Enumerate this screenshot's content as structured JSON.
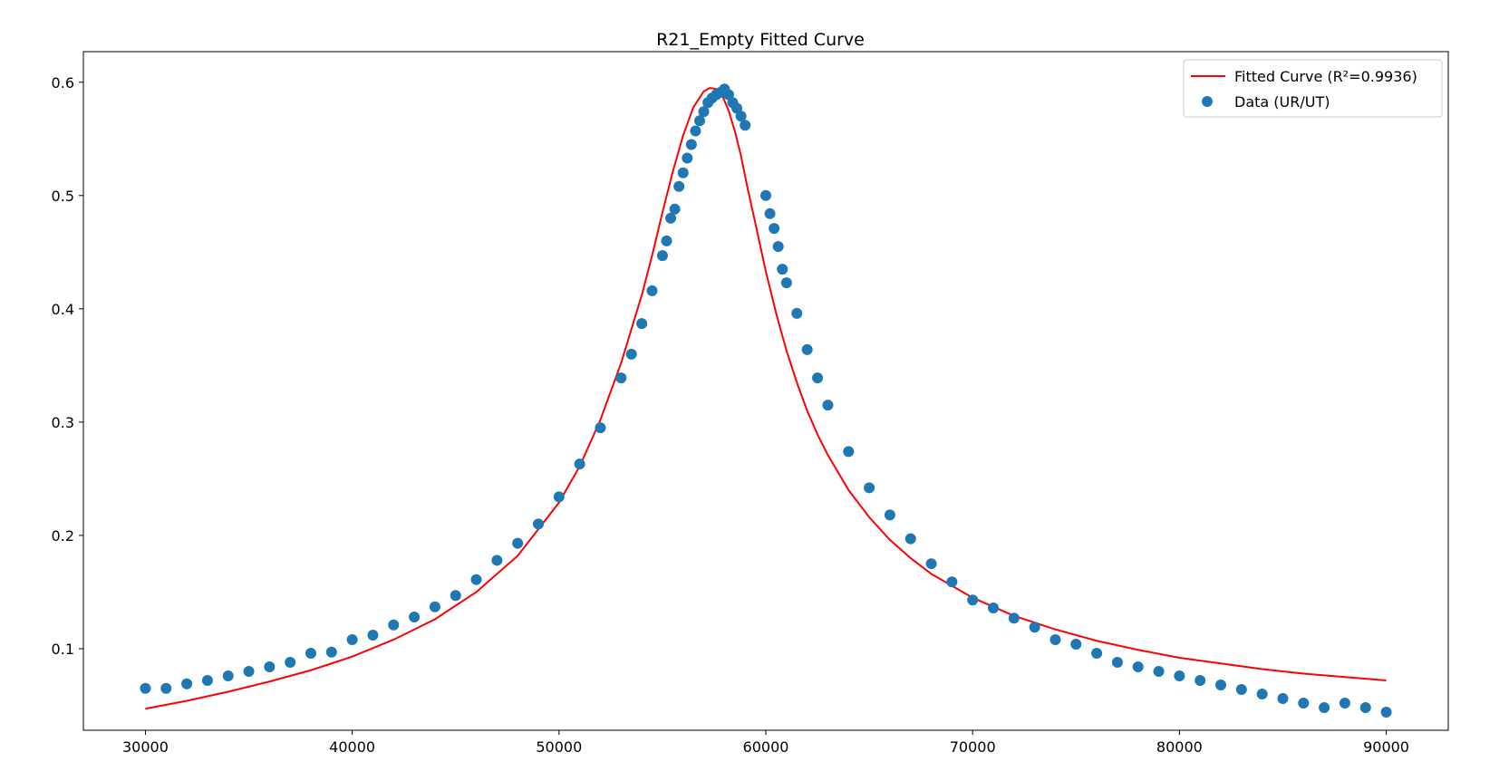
{
  "chart_data": {
    "type": "scatter",
    "title": "R21_Empty Fitted Curve",
    "xlabel": "",
    "ylabel": "",
    "xlim": [
      27000,
      93000
    ],
    "ylim": [
      0.028,
      0.627
    ],
    "x_ticks": [
      30000,
      40000,
      50000,
      60000,
      70000,
      80000,
      90000
    ],
    "x_tick_labels": [
      "30000",
      "40000",
      "50000",
      "60000",
      "70000",
      "80000",
      "90000"
    ],
    "y_ticks": [
      0.1,
      0.2,
      0.3,
      0.4,
      0.5,
      0.6
    ],
    "y_tick_labels": [
      "0.1",
      "0.2",
      "0.3",
      "0.4",
      "0.5",
      "0.6"
    ],
    "grid": false,
    "legend_position": "top-right",
    "colors": {
      "fit": "#ff0000",
      "data": "#1f77b4"
    },
    "series": [
      {
        "name": "Fitted Curve (R²=0.9936)",
        "kind": "line",
        "x": [
          30000,
          32000,
          34000,
          36000,
          38000,
          40000,
          42000,
          44000,
          46000,
          48000,
          50000,
          51000,
          52000,
          53000,
          54000,
          54500,
          55000,
          55500,
          56000,
          56500,
          57000,
          57300,
          57600,
          57900,
          58200,
          58500,
          58800,
          59100,
          59500,
          60000,
          60500,
          61000,
          61500,
          62000,
          62500,
          63000,
          64000,
          65000,
          66000,
          67000,
          68000,
          70000,
          72000,
          74000,
          76000,
          78000,
          80000,
          82000,
          84000,
          86000,
          88000,
          90000
        ],
        "y": [
          0.047,
          0.054,
          0.062,
          0.071,
          0.081,
          0.093,
          0.108,
          0.126,
          0.15,
          0.182,
          0.229,
          0.261,
          0.302,
          0.352,
          0.412,
          0.447,
          0.485,
          0.521,
          0.553,
          0.578,
          0.592,
          0.595,
          0.594,
          0.588,
          0.575,
          0.557,
          0.535,
          0.508,
          0.475,
          0.433,
          0.396,
          0.363,
          0.335,
          0.31,
          0.289,
          0.271,
          0.24,
          0.216,
          0.196,
          0.18,
          0.166,
          0.145,
          0.129,
          0.117,
          0.107,
          0.099,
          0.092,
          0.087,
          0.082,
          0.078,
          0.075,
          0.072
        ]
      },
      {
        "name": "Data (UR/UT)",
        "kind": "scatter",
        "x": [
          30000,
          31000,
          32000,
          33000,
          34000,
          35000,
          36000,
          37000,
          38000,
          39000,
          40000,
          41000,
          42000,
          43000,
          44000,
          45000,
          46000,
          47000,
          48000,
          49000,
          50000,
          51000,
          52000,
          53000,
          53500,
          54000,
          54500,
          55000,
          55200,
          55400,
          55600,
          55800,
          56000,
          56200,
          56400,
          56600,
          56800,
          57000,
          57200,
          57400,
          57600,
          57800,
          58000,
          58200,
          58400,
          58600,
          58800,
          59000,
          60000,
          60200,
          60400,
          60600,
          60800,
          61000,
          61500,
          62000,
          62500,
          63000,
          64000,
          65000,
          66000,
          67000,
          68000,
          69000,
          70000,
          71000,
          72000,
          73000,
          74000,
          75000,
          76000,
          77000,
          78000,
          79000,
          80000,
          81000,
          82000,
          83000,
          84000,
          85000,
          86000,
          87000,
          88000,
          89000,
          90000
        ],
        "y": [
          0.065,
          0.065,
          0.069,
          0.072,
          0.076,
          0.08,
          0.084,
          0.088,
          0.096,
          0.097,
          0.108,
          0.112,
          0.121,
          0.128,
          0.137,
          0.147,
          0.161,
          0.178,
          0.193,
          0.21,
          0.234,
          0.263,
          0.295,
          0.339,
          0.36,
          0.387,
          0.416,
          0.447,
          0.46,
          0.48,
          0.488,
          0.508,
          0.52,
          0.533,
          0.545,
          0.557,
          0.566,
          0.574,
          0.582,
          0.586,
          0.589,
          0.591,
          0.594,
          0.589,
          0.582,
          0.577,
          0.57,
          0.562,
          0.5,
          0.484,
          0.471,
          0.455,
          0.435,
          0.423,
          0.396,
          0.364,
          0.339,
          0.315,
          0.274,
          0.242,
          0.218,
          0.197,
          0.175,
          0.159,
          0.143,
          0.136,
          0.127,
          0.119,
          0.108,
          0.104,
          0.096,
          0.088,
          0.084,
          0.08,
          0.076,
          0.072,
          0.068,
          0.064,
          0.06,
          0.056,
          0.052,
          0.048,
          0.052,
          0.048,
          0.044
        ]
      }
    ]
  }
}
